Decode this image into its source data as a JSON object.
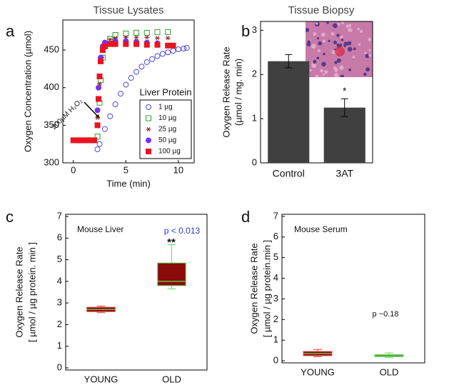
{
  "chart_data": [
    {
      "type": "scatter",
      "label": "a",
      "title": "Tissue Lysates",
      "xlabel": "Time (min)",
      "ylabel": "Oxygen Concentration (µmol)",
      "xlim": [
        -1,
        11.5
      ],
      "ylim": [
        300,
        490
      ],
      "xticks": [
        0,
        5,
        10
      ],
      "yticks": [
        300,
        350,
        400,
        450
      ],
      "annotation": "200µM H₂O₂",
      "legend_title": "Liver Protein",
      "legend_position": "lower right",
      "series": [
        {
          "name": "1 µg",
          "color": "#4b4bd6",
          "marker": "circle-open",
          "x": [
            2.3,
            2.5,
            3,
            3.5,
            4,
            4.5,
            5,
            5.5,
            6,
            6.5,
            7,
            7.5,
            8,
            8.5,
            9,
            9.5,
            10,
            10.5,
            10.8
          ],
          "values": [
            318,
            325,
            345,
            362,
            378,
            392,
            404,
            413,
            421,
            428,
            434,
            438,
            442,
            445,
            447,
            449,
            451,
            452,
            453
          ]
        },
        {
          "name": "10 µg",
          "color": "#2ea02e",
          "marker": "square-open",
          "x": [
            2.3,
            2.5,
            2.6,
            2.8,
            3,
            3.5,
            4,
            5,
            6,
            7,
            8,
            9
          ],
          "values": [
            335,
            380,
            410,
            440,
            455,
            465,
            470,
            472,
            473,
            473,
            474,
            474
          ]
        },
        {
          "name": "25 µg",
          "color": "#8b1a1a",
          "marker": "star",
          "x": [
            2.3,
            2.5,
            2.7,
            3,
            3.5,
            4,
            5,
            6,
            7,
            8,
            9
          ],
          "values": [
            360,
            405,
            440,
            458,
            464,
            466,
            467,
            467,
            467,
            466,
            466
          ]
        },
        {
          "name": "50 µg",
          "color": "#7b2ff0",
          "marker": "circle",
          "x": [
            2.3,
            2.4,
            2.6,
            2.8,
            3,
            4,
            5,
            6,
            7,
            8
          ],
          "values": [
            370,
            400,
            440,
            455,
            460,
            462,
            462,
            461,
            460,
            459
          ]
        },
        {
          "name": "100 µg",
          "color": "#e8141e",
          "marker": "square",
          "x": [
            0,
            0.25,
            0.5,
            0.75,
            1,
            1.25,
            1.5,
            1.75,
            2,
            2.3,
            2.4,
            2.5,
            2.6,
            2.8,
            3,
            3.5,
            4,
            5,
            6,
            7,
            8,
            9,
            9.5
          ],
          "values": [
            330,
            330,
            330,
            330,
            330,
            330,
            330,
            330,
            330,
            350,
            385,
            415,
            435,
            450,
            455,
            458,
            458,
            458,
            458,
            457,
            457,
            456,
            456
          ]
        }
      ]
    },
    {
      "type": "bar",
      "label": "b",
      "title": "Tissue Biopsy",
      "ylabel": [
        "Oxygen Release Rate",
        "(µmol / mg. min)"
      ],
      "categories": [
        "Control",
        "3AT"
      ],
      "values": [
        2.3,
        1.25
      ],
      "errors": [
        0.15,
        0.2
      ],
      "color": "#404040",
      "ylim": [
        0,
        3.2
      ],
      "yticks": [
        0,
        1,
        2,
        3
      ],
      "annotation": "*"
    },
    {
      "type": "box",
      "label": "c",
      "subtitle": "Mouse Liver",
      "ylabel": [
        "Oxygen Release Rate",
        "[ µmol / µg protein. min ]"
      ],
      "categories": [
        "YOUNG",
        "OLD"
      ],
      "color": "#8b0a0a",
      "boxes": [
        {
          "min": 2.55,
          "q1": 2.6,
          "median": 2.7,
          "q3": 2.8,
          "max": 2.85,
          "whisker_color": "#e04040"
        },
        {
          "min": 3.65,
          "q1": 3.8,
          "median": 4.0,
          "q3": 4.85,
          "max": 5.7,
          "whisker_color": "#5ce05c"
        }
      ],
      "p_value": "p < 0.013",
      "significance": "**",
      "ylim": [
        -0.1,
        7.1
      ],
      "yticks": [
        0,
        1,
        2,
        3,
        4,
        5,
        6,
        7
      ]
    },
    {
      "type": "box",
      "label": "d",
      "subtitle": "Mouse Serum",
      "ylabel": [
        "Oxygen Release Rate",
        "[ µmol / µg protein.min ]"
      ],
      "categories": [
        "YOUNG",
        "OLD"
      ],
      "color": "#8b0a0a",
      "boxes": [
        {
          "min": 0.2,
          "q1": 0.25,
          "median": 0.35,
          "q3": 0.45,
          "max": 0.55,
          "whisker_color": "#e04040"
        },
        {
          "min": 0.15,
          "q1": 0.2,
          "median": 0.25,
          "q3": 0.3,
          "max": 0.38,
          "whisker_color": "#5ce05c"
        }
      ],
      "p_value": "p ~0.18",
      "ylim": [
        -0.1,
        7.1
      ],
      "yticks": [
        0,
        1,
        2,
        3,
        4,
        5,
        6,
        7
      ]
    }
  ]
}
